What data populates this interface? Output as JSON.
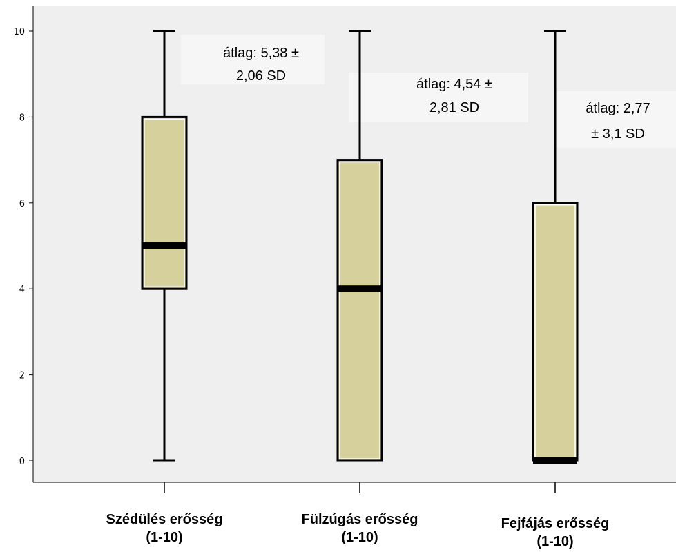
{
  "chart_data": {
    "type": "boxplot",
    "ylim": [
      0,
      10
    ],
    "y_ticks": [
      "0",
      "2",
      "4",
      "6",
      "8",
      "10"
    ],
    "grid": false,
    "colors": {
      "plot_background": "#efefef",
      "box_fill": "#d6d09c",
      "stroke": "#000000",
      "annotation_background": "#f6f6f6"
    },
    "categories": [
      {
        "label_line1": "Szédülés erősség",
        "label_line2": "(1-10)"
      },
      {
        "label_line1": "Fülzúgás erősség",
        "label_line2": "(1-10)"
      },
      {
        "label_line1": "Fejfájás erősség",
        "label_line2": "(1-10)"
      }
    ],
    "boxes": [
      {
        "min": 0,
        "q1": 4,
        "median": 5,
        "q3": 8,
        "max": 10
      },
      {
        "min": 0,
        "q1": 0,
        "median": 4,
        "q3": 7,
        "max": 10
      },
      {
        "min": 0,
        "q1": 0,
        "median": 0,
        "q3": 6,
        "max": 10
      }
    ],
    "annotations": [
      {
        "line1": "átlag: 5,38 ±",
        "line2": "2,06 SD"
      },
      {
        "line1": "átlag: 4,54 ±",
        "line2": "2,81 SD"
      },
      {
        "line1": "átlag: 2,77",
        "line2": "± 3,1 SD"
      }
    ]
  }
}
